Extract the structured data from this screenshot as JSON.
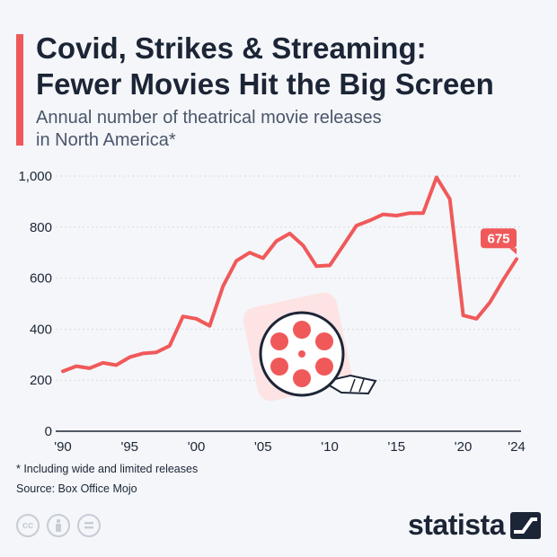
{
  "header": {
    "title_line1": "Covid, Strikes & Streaming:",
    "title_line2": "Fewer Movies Hit the Big Screen",
    "subtitle_line1": "Annual number of theatrical movie releases",
    "subtitle_line2": "in North America*"
  },
  "footer": {
    "footnote": "* Including wide and limited releases",
    "source": "Source: Box Office Mojo",
    "brand": "statista"
  },
  "colors": {
    "line": "#f0595a",
    "text": "#1c2536",
    "grid": "#d6dae2",
    "background": "#f4f6f9"
  },
  "icons": [
    "film-reel-icon",
    "cc-license-icon",
    "attribution-icon",
    "no-derivatives-icon",
    "statista-logo-icon"
  ],
  "chart_data": {
    "type": "line",
    "title": "Covid, Strikes & Streaming: Fewer Movies Hit the Big Screen",
    "subtitle": "Annual number of theatrical movie releases in North America*",
    "xlabel": "",
    "ylabel": "",
    "x": [
      1990,
      1991,
      1992,
      1993,
      1994,
      1995,
      1996,
      1997,
      1998,
      1999,
      2000,
      2001,
      2002,
      2003,
      2004,
      2005,
      2006,
      2007,
      2008,
      2009,
      2010,
      2011,
      2012,
      2013,
      2014,
      2015,
      2016,
      2017,
      2018,
      2019,
      2020,
      2021,
      2022,
      2023,
      2024
    ],
    "series": [
      {
        "values": [
          235,
          255,
          247,
          268,
          259,
          290,
          305,
          309,
          335,
          450,
          441,
          413,
          568,
          668,
          700,
          678,
          745,
          775,
          728,
          647,
          650,
          727,
          806,
          826,
          850,
          845,
          855,
          855,
          995,
          910,
          454,
          441,
          505,
          593,
          675
        ]
      }
    ],
    "xlim": [
      1990,
      2024
    ],
    "ylim": [
      0,
      1000
    ],
    "yticks": [
      0,
      200,
      400,
      600,
      800,
      1000
    ],
    "ytick_labels": [
      "0",
      "200",
      "400",
      "600",
      "800",
      "1,000"
    ],
    "xticks": [
      1990,
      1995,
      2000,
      2005,
      2010,
      2015,
      2020,
      2024
    ],
    "xtick_labels": [
      "'90",
      "'95",
      "'00",
      "'05",
      "'10",
      "'15",
      "'20",
      "'24"
    ],
    "annotations": [
      {
        "x": 2024,
        "label": "675"
      }
    ],
    "grid": true,
    "legend": "none"
  }
}
